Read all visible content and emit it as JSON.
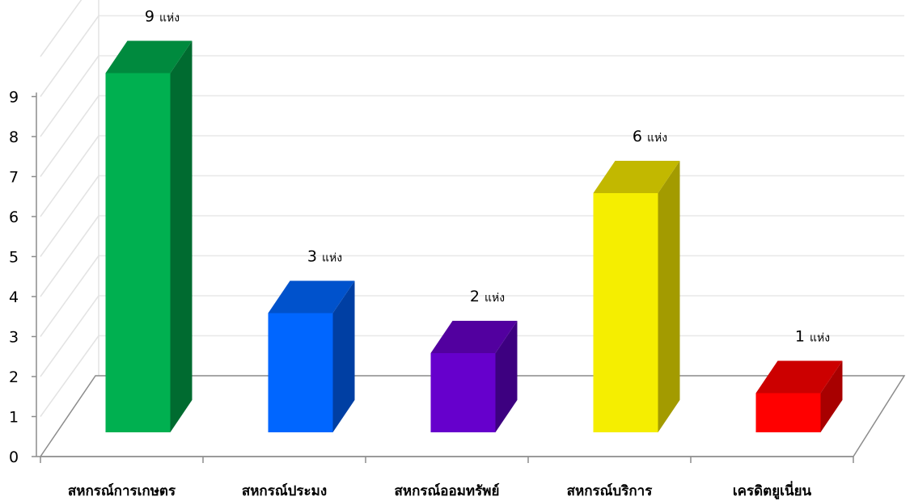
{
  "chart_data": {
    "type": "bar",
    "categories": [
      "สหกรณ์การเกษตร",
      "สหกรณ์ประมง",
      "สหกรณ์ออมทรัพย์",
      "สหกรณ์บริการ",
      "เครดิตยูเนี่ยน"
    ],
    "values": [
      9,
      3,
      2,
      6,
      1
    ],
    "data_labels": [
      "9",
      "3",
      "2",
      "6",
      "1"
    ],
    "data_label_unit": "แห่ง",
    "yticks": [
      "0",
      "1",
      "2",
      "3",
      "4",
      "5",
      "6",
      "7",
      "8",
      "9"
    ],
    "ylim": [
      0,
      9
    ],
    "grid": true,
    "legend": "none",
    "style": "3d-column",
    "colors": [
      {
        "front": "#00b050",
        "side": "#006b30",
        "top": "#008a3e"
      },
      {
        "front": "#0066ff",
        "side": "#003fa3",
        "top": "#0052cc"
      },
      {
        "front": "#6600cc",
        "side": "#3d0080",
        "top": "#52009f"
      },
      {
        "front": "#f5ee00",
        "side": "#a39b00",
        "top": "#c2b800"
      },
      {
        "front": "#ff0000",
        "side": "#a80000",
        "top": "#cc0000"
      }
    ]
  }
}
